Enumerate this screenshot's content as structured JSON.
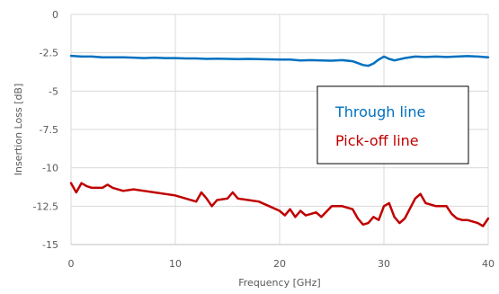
{
  "chart_data": {
    "type": "line",
    "xlabel": "Frequency [GHz]",
    "ylabel": "Insertion Loss [dB]",
    "xlim": [
      0,
      40
    ],
    "ylim": [
      -15,
      0
    ],
    "x_ticks": [
      0,
      10,
      20,
      30,
      40
    ],
    "y_ticks": [
      0,
      -2.5,
      -5,
      -7.5,
      -10,
      -12.5,
      -15
    ],
    "x_tick_labels": [
      "0",
      "10",
      "20",
      "30",
      "40"
    ],
    "y_tick_labels": [
      "0",
      "-2.5",
      "-5",
      "-7.5",
      "-10",
      "-12.5",
      "-15"
    ],
    "grid": true,
    "legend_position": "right-center",
    "series": [
      {
        "name": "Through line",
        "color": "#0070C0",
        "x": [
          0,
          1,
          2,
          3,
          4,
          5,
          6,
          7,
          8,
          9,
          10,
          11,
          12,
          13,
          14,
          15,
          16,
          17,
          18,
          19,
          20,
          21,
          22,
          23,
          24,
          25,
          26,
          27,
          28,
          28.5,
          29,
          29.5,
          30,
          30.5,
          31,
          32,
          33,
          34,
          35,
          36,
          37,
          38,
          39,
          40
        ],
        "y": [
          -2.7,
          -2.75,
          -2.75,
          -2.8,
          -2.8,
          -2.8,
          -2.82,
          -2.85,
          -2.82,
          -2.85,
          -2.85,
          -2.87,
          -2.87,
          -2.9,
          -2.88,
          -2.9,
          -2.92,
          -2.9,
          -2.92,
          -2.93,
          -2.95,
          -2.95,
          -3.0,
          -2.98,
          -3.0,
          -3.02,
          -2.98,
          -3.05,
          -3.3,
          -3.35,
          -3.2,
          -2.95,
          -2.75,
          -2.9,
          -3.0,
          -2.85,
          -2.75,
          -2.78,
          -2.75,
          -2.78,
          -2.75,
          -2.72,
          -2.75,
          -2.8
        ]
      },
      {
        "name": "Pick-off line",
        "color": "#C00000",
        "x": [
          0,
          0.5,
          1,
          1.5,
          2,
          3,
          3.5,
          4,
          5,
          6,
          7,
          8,
          9,
          10,
          11,
          12,
          12.5,
          13,
          13.5,
          14,
          15,
          15.5,
          16,
          17,
          18,
          19,
          20,
          20.5,
          21,
          21.5,
          22,
          22.5,
          23,
          23.5,
          24,
          25,
          26,
          27,
          27.5,
          28,
          28.5,
          29,
          29.5,
          30,
          30.5,
          31,
          31.5,
          32,
          33,
          33.5,
          34,
          35,
          36,
          36.5,
          37,
          37.5,
          38,
          39,
          39.5,
          40
        ],
        "y": [
          -11.0,
          -11.6,
          -11.0,
          -11.2,
          -11.3,
          -11.3,
          -11.1,
          -11.3,
          -11.5,
          -11.4,
          -11.5,
          -11.6,
          -11.7,
          -11.8,
          -12.0,
          -12.2,
          -11.6,
          -12.0,
          -12.5,
          -12.1,
          -12.0,
          -11.6,
          -12.0,
          -12.1,
          -12.2,
          -12.5,
          -12.8,
          -13.1,
          -12.7,
          -13.2,
          -12.8,
          -13.1,
          -13.0,
          -12.9,
          -13.2,
          -12.5,
          -12.5,
          -12.7,
          -13.3,
          -13.7,
          -13.6,
          -13.2,
          -13.4,
          -12.5,
          -12.3,
          -13.2,
          -13.6,
          -13.3,
          -12.0,
          -11.7,
          -12.3,
          -12.5,
          -12.5,
          -13.0,
          -13.3,
          -13.4,
          -13.4,
          -13.6,
          -13.8,
          -13.3
        ]
      }
    ]
  }
}
